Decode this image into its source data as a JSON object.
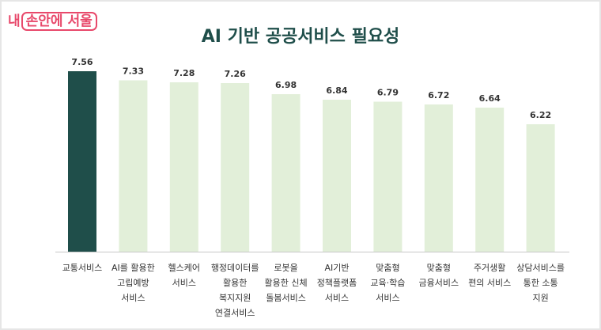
{
  "logo": {
    "prefix": "내",
    "boxed": "손안에 서울"
  },
  "chart_data": {
    "type": "bar",
    "title": "AI 기반 공공서비스 필요성",
    "categories": [
      "교통서비스",
      "AI를 활용한\n고립예방\n서비스",
      "헬스케어\n서비스",
      "행정데이터를\n활용한\n복지지원\n연결서비스",
      "로봇을\n활용한 신체\n돌봄서비스",
      "AI기반\n정책플랫폼\n서비스",
      "맞춤형\n교육·학습\n서비스",
      "맞춤형\n금융서비스",
      "주거생활\n편의 서비스",
      "상담서비스를\n통한 소통\n지원"
    ],
    "values": [
      7.56,
      7.33,
      7.28,
      7.26,
      6.98,
      6.84,
      6.79,
      6.72,
      6.64,
      6.22
    ],
    "value_labels": [
      "7.56",
      "7.33",
      "7.28",
      "7.26",
      "6.98",
      "6.84",
      "6.79",
      "6.72",
      "6.64",
      "6.22"
    ],
    "ylim": [
      3,
      8
    ],
    "grid": false,
    "colors": {
      "highlight": "#1f4e4a",
      "default": "#e2efd9",
      "axis": "#c8c8c8"
    }
  }
}
